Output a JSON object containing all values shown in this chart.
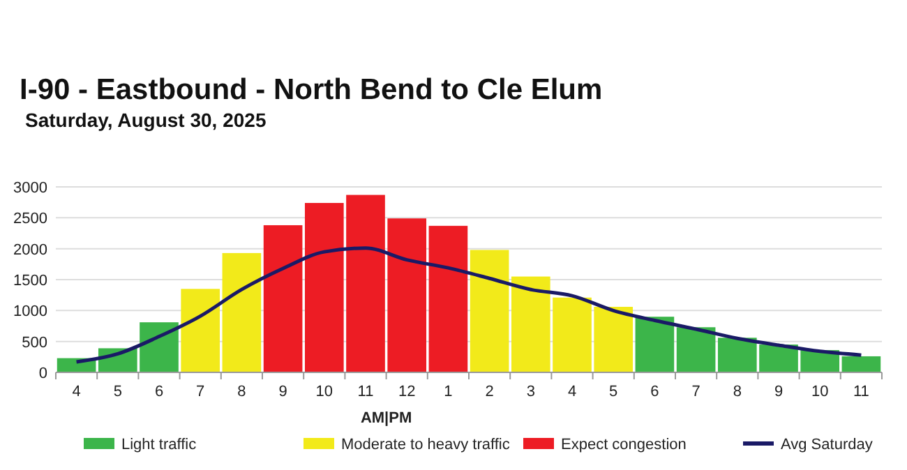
{
  "chart_data": {
    "type": "bar",
    "title": "I-90 - Eastbound - North Bend to Cle Elum",
    "subtitle": "Saturday, August 30, 2025",
    "categories": [
      "4",
      "5",
      "6",
      "7",
      "8",
      "9",
      "10",
      "11",
      "12",
      "1",
      "2",
      "3",
      "4",
      "5",
      "6",
      "7",
      "8",
      "9",
      "10",
      "11"
    ],
    "series": [
      {
        "name": "Light traffic",
        "color": "#3cb54a",
        "values": [
          230,
          390,
          810,
          null,
          null,
          null,
          null,
          null,
          null,
          null,
          null,
          null,
          null,
          null,
          900,
          730,
          560,
          450,
          360,
          260
        ]
      },
      {
        "name": "Moderate to heavy traffic",
        "color": "#f2ea1a",
        "values": [
          null,
          null,
          null,
          1350,
          1930,
          null,
          null,
          null,
          null,
          null,
          1980,
          1550,
          1210,
          1060,
          null,
          null,
          null,
          null,
          null,
          null
        ]
      },
      {
        "name": "Expect congestion",
        "color": "#ed1c24",
        "values": [
          null,
          null,
          null,
          null,
          null,
          2380,
          2740,
          2870,
          2490,
          2370,
          null,
          null,
          null,
          null,
          null,
          null,
          null,
          null,
          null,
          null
        ]
      },
      {
        "name": "Avg Saturday",
        "type": "line",
        "color": "#1a1a66",
        "values": [
          170,
          300,
          580,
          910,
          1340,
          1680,
          1950,
          2010,
          1820,
          1690,
          1520,
          1340,
          1240,
          1000,
          840,
          700,
          550,
          440,
          340,
          280
        ]
      }
    ],
    "ylim": [
      0,
      3000
    ],
    "yticks": [
      0,
      500,
      1000,
      1500,
      2000,
      2500,
      3000
    ],
    "grid": "y",
    "legend": "bottom",
    "marker": "none",
    "line_style": "solid",
    "annotations": [
      "AM|PM"
    ]
  }
}
